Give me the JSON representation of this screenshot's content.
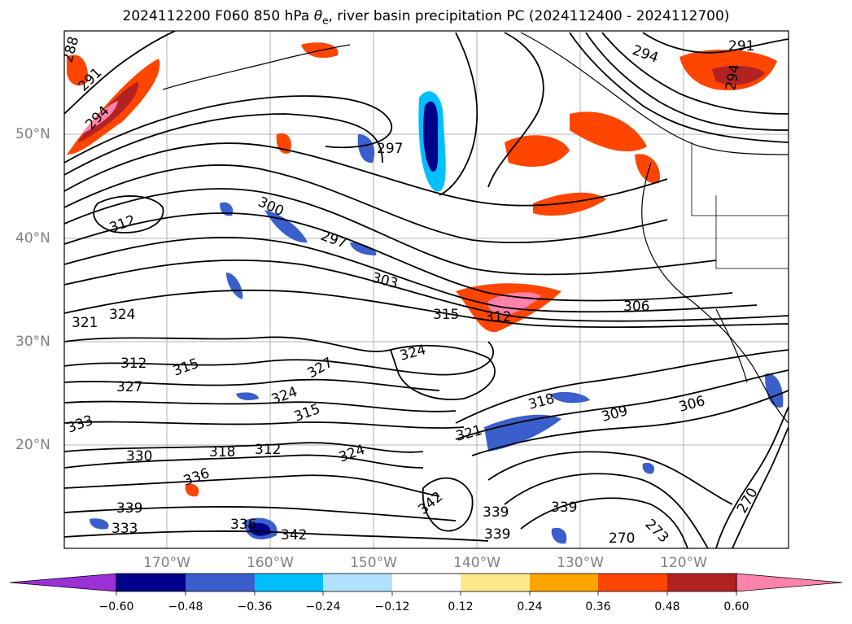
{
  "title": {
    "prefix": "2024112200 F060 850 hPa ",
    "theta": "θ",
    "subscript": "e",
    "suffix": ", river basin precipitation PC (2024112400 - 2024112700)"
  },
  "map": {
    "lat_labels": [
      "50°N",
      "40°N",
      "30°N",
      "20°N"
    ],
    "lon_labels": [
      "170°W",
      "160°W",
      "150°W",
      "140°W",
      "130°W",
      "120°W"
    ],
    "contour_labels": [
      "288",
      "291",
      "294",
      "297",
      "300",
      "297",
      "303",
      "312",
      "315",
      "312",
      "306",
      "324",
      "321",
      "324",
      "327",
      "315",
      "312",
      "327",
      "324",
      "315",
      "318",
      "312",
      "324",
      "321",
      "318",
      "309",
      "306",
      "333",
      "330",
      "336",
      "342",
      "339",
      "333",
      "336",
      "342",
      "339",
      "339",
      "339",
      "270",
      "273",
      "270",
      "291",
      "294",
      "294"
    ],
    "contour_color": "#000000",
    "grid_color": "#b0b0b0"
  },
  "colorbar": {
    "colors": [
      "#9b30d6",
      "#00008b",
      "#3a5fcd",
      "#00bfff",
      "#b0e2ff",
      "#ffffff",
      "#ffe88a",
      "#ffa500",
      "#ff4500",
      "#b22222",
      "#ff82ab",
      "#ff82ab"
    ],
    "tick_labels": [
      "−0.60",
      "−0.48",
      "−0.36",
      "−0.24",
      "−0.12",
      "0.12",
      "0.24",
      "0.36",
      "0.48",
      "0.60"
    ]
  }
}
